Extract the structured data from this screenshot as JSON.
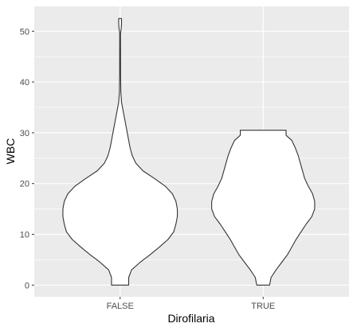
{
  "chart_data": {
    "type": "violin",
    "title": "",
    "xlabel": "Dirofilaria",
    "ylabel": "WBC",
    "categories": [
      "FALSE",
      "TRUE"
    ],
    "y_ticks": [
      0,
      10,
      20,
      30,
      40,
      50
    ],
    "ylim": [
      -2.3,
      54.9
    ],
    "grid": true,
    "legend": "none",
    "colors": {
      "panel": "#ebebeb",
      "grid": "#ffffff",
      "violin_fill": "#ffffff",
      "violin_stroke": "#333333"
    },
    "violins": [
      {
        "category": "FALSE",
        "min": 0,
        "max": 52.5,
        "half_width_max": 0.5,
        "profile": [
          [
            0.0,
            0.12
          ],
          [
            1.5,
            0.12
          ],
          [
            3.0,
            0.16
          ],
          [
            4.5,
            0.28
          ],
          [
            6.0,
            0.42
          ],
          [
            7.5,
            0.55
          ],
          [
            9.0,
            0.67
          ],
          [
            10.5,
            0.75
          ],
          [
            12.0,
            0.78
          ],
          [
            13.5,
            0.8
          ],
          [
            15.0,
            0.8
          ],
          [
            16.5,
            0.78
          ],
          [
            18.0,
            0.73
          ],
          [
            19.5,
            0.63
          ],
          [
            21.0,
            0.48
          ],
          [
            22.5,
            0.32
          ],
          [
            24.0,
            0.22
          ],
          [
            25.5,
            0.17
          ],
          [
            27.0,
            0.14
          ],
          [
            28.5,
            0.12
          ],
          [
            30.0,
            0.1
          ],
          [
            31.5,
            0.08
          ],
          [
            33.0,
            0.06
          ],
          [
            34.5,
            0.04
          ],
          [
            36.0,
            0.02
          ],
          [
            38.0,
            0.01
          ],
          [
            42.0,
            0.006
          ],
          [
            46.0,
            0.006
          ],
          [
            49.5,
            0.005
          ],
          [
            50.5,
            0.015
          ],
          [
            51.5,
            0.02
          ],
          [
            52.5,
            0.02
          ]
        ]
      },
      {
        "category": "TRUE",
        "min": 0,
        "max": 30.5,
        "half_width_max": 0.5,
        "profile": [
          [
            0.0,
            0.09
          ],
          [
            1.5,
            0.11
          ],
          [
            3.0,
            0.18
          ],
          [
            4.5,
            0.26
          ],
          [
            6.0,
            0.34
          ],
          [
            7.5,
            0.4
          ],
          [
            9.0,
            0.46
          ],
          [
            10.5,
            0.53
          ],
          [
            12.0,
            0.6
          ],
          [
            13.5,
            0.68
          ],
          [
            15.0,
            0.72
          ],
          [
            16.5,
            0.72
          ],
          [
            18.0,
            0.69
          ],
          [
            19.5,
            0.63
          ],
          [
            21.0,
            0.58
          ],
          [
            22.5,
            0.55
          ],
          [
            24.0,
            0.52
          ],
          [
            25.5,
            0.49
          ],
          [
            27.0,
            0.45
          ],
          [
            28.5,
            0.4
          ],
          [
            29.5,
            0.32
          ],
          [
            30.5,
            0.32
          ]
        ]
      }
    ]
  }
}
